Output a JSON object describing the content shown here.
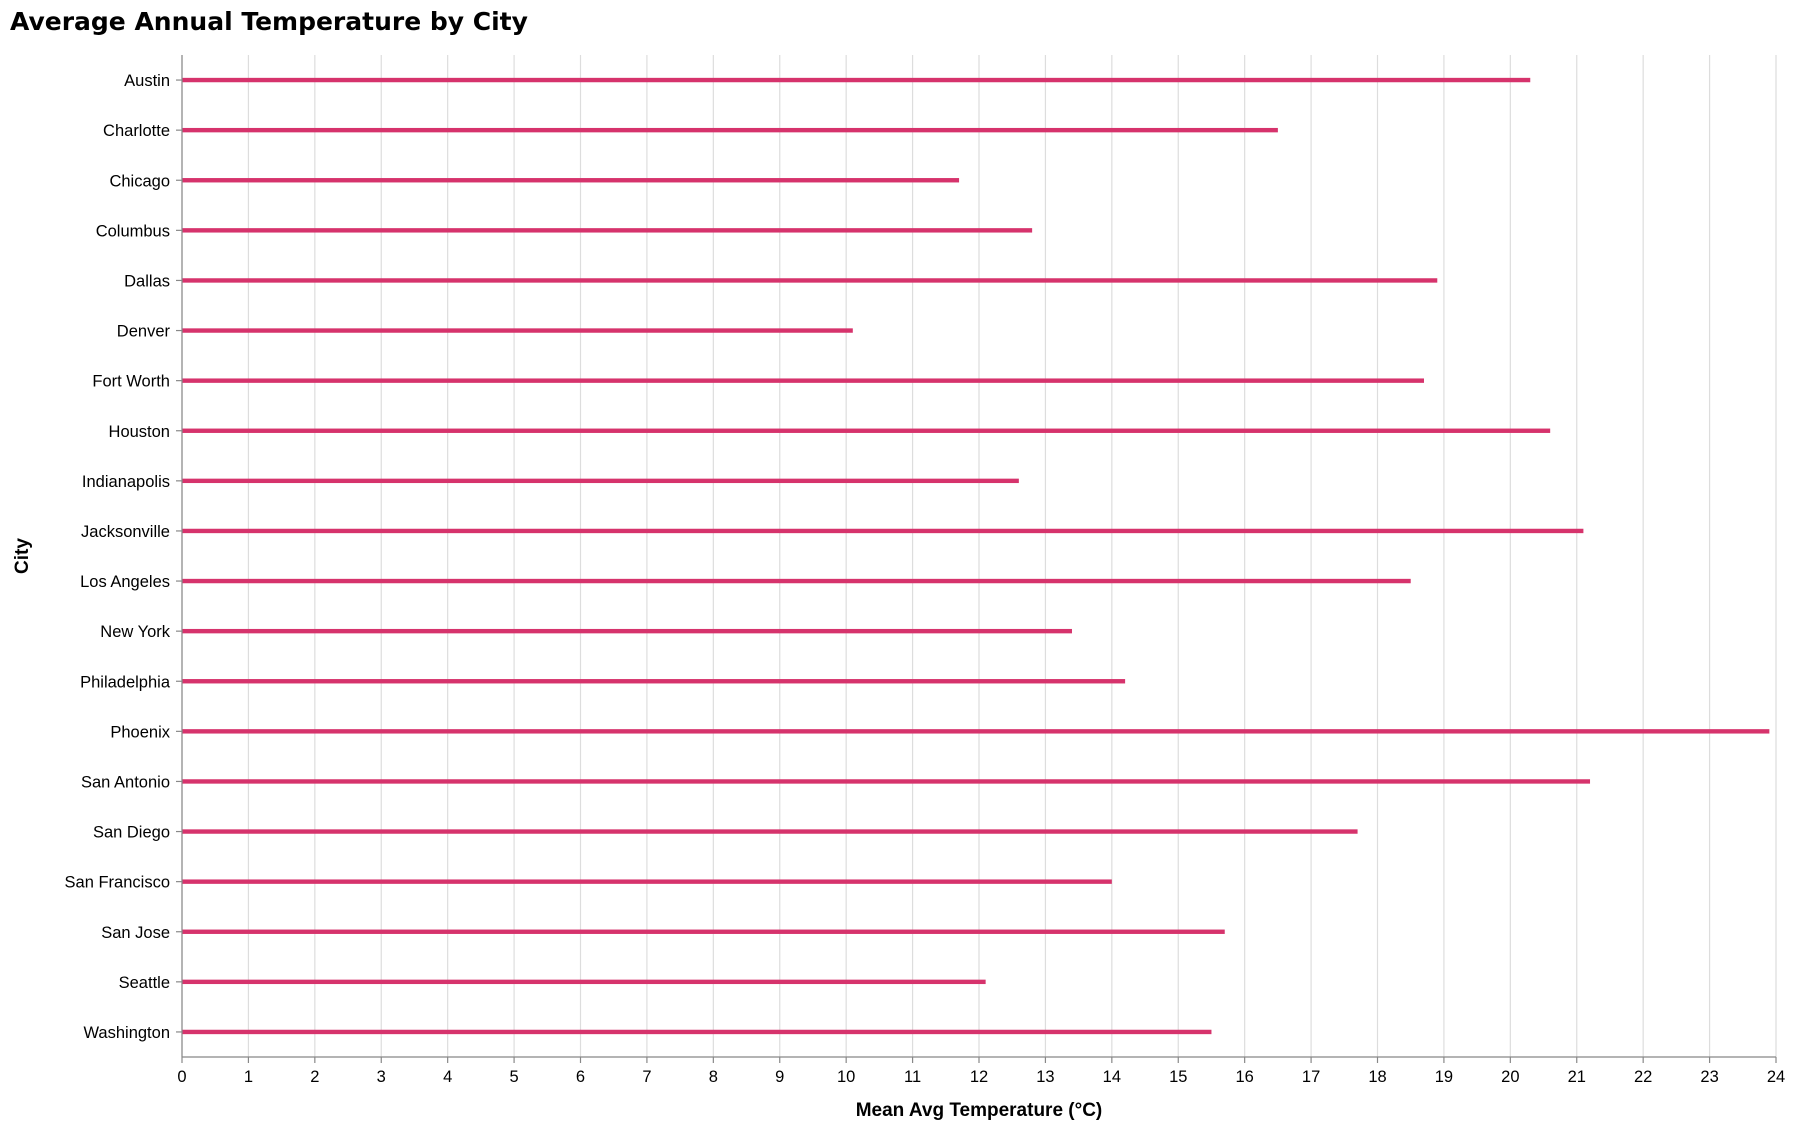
{
  "chart_data": {
    "type": "bar",
    "title": "Average Annual Temperature by City",
    "xlabel": "Mean Avg Temperature (°C)",
    "ylabel": "City",
    "xlim": [
      0,
      24
    ],
    "xticks": [
      0,
      1,
      2,
      3,
      4,
      5,
      6,
      7,
      8,
      9,
      10,
      11,
      12,
      13,
      14,
      15,
      16,
      17,
      18,
      19,
      20,
      21,
      22,
      23,
      24
    ],
    "grid": true,
    "orientation": "horizontal",
    "bar_color": "#d6336c",
    "categories": [
      "Austin",
      "Charlotte",
      "Chicago",
      "Columbus",
      "Dallas",
      "Denver",
      "Fort Worth",
      "Houston",
      "Indianapolis",
      "Jacksonville",
      "Los Angeles",
      "New York",
      "Philadelphia",
      "Phoenix",
      "San Antonio",
      "San Diego",
      "San Francisco",
      "San Jose",
      "Seattle",
      "Washington"
    ],
    "values": [
      20.3,
      16.5,
      11.7,
      12.8,
      18.9,
      10.1,
      18.7,
      20.6,
      12.6,
      21.1,
      18.5,
      13.4,
      14.2,
      23.9,
      21.2,
      17.7,
      14.0,
      15.7,
      12.1,
      15.5
    ]
  }
}
